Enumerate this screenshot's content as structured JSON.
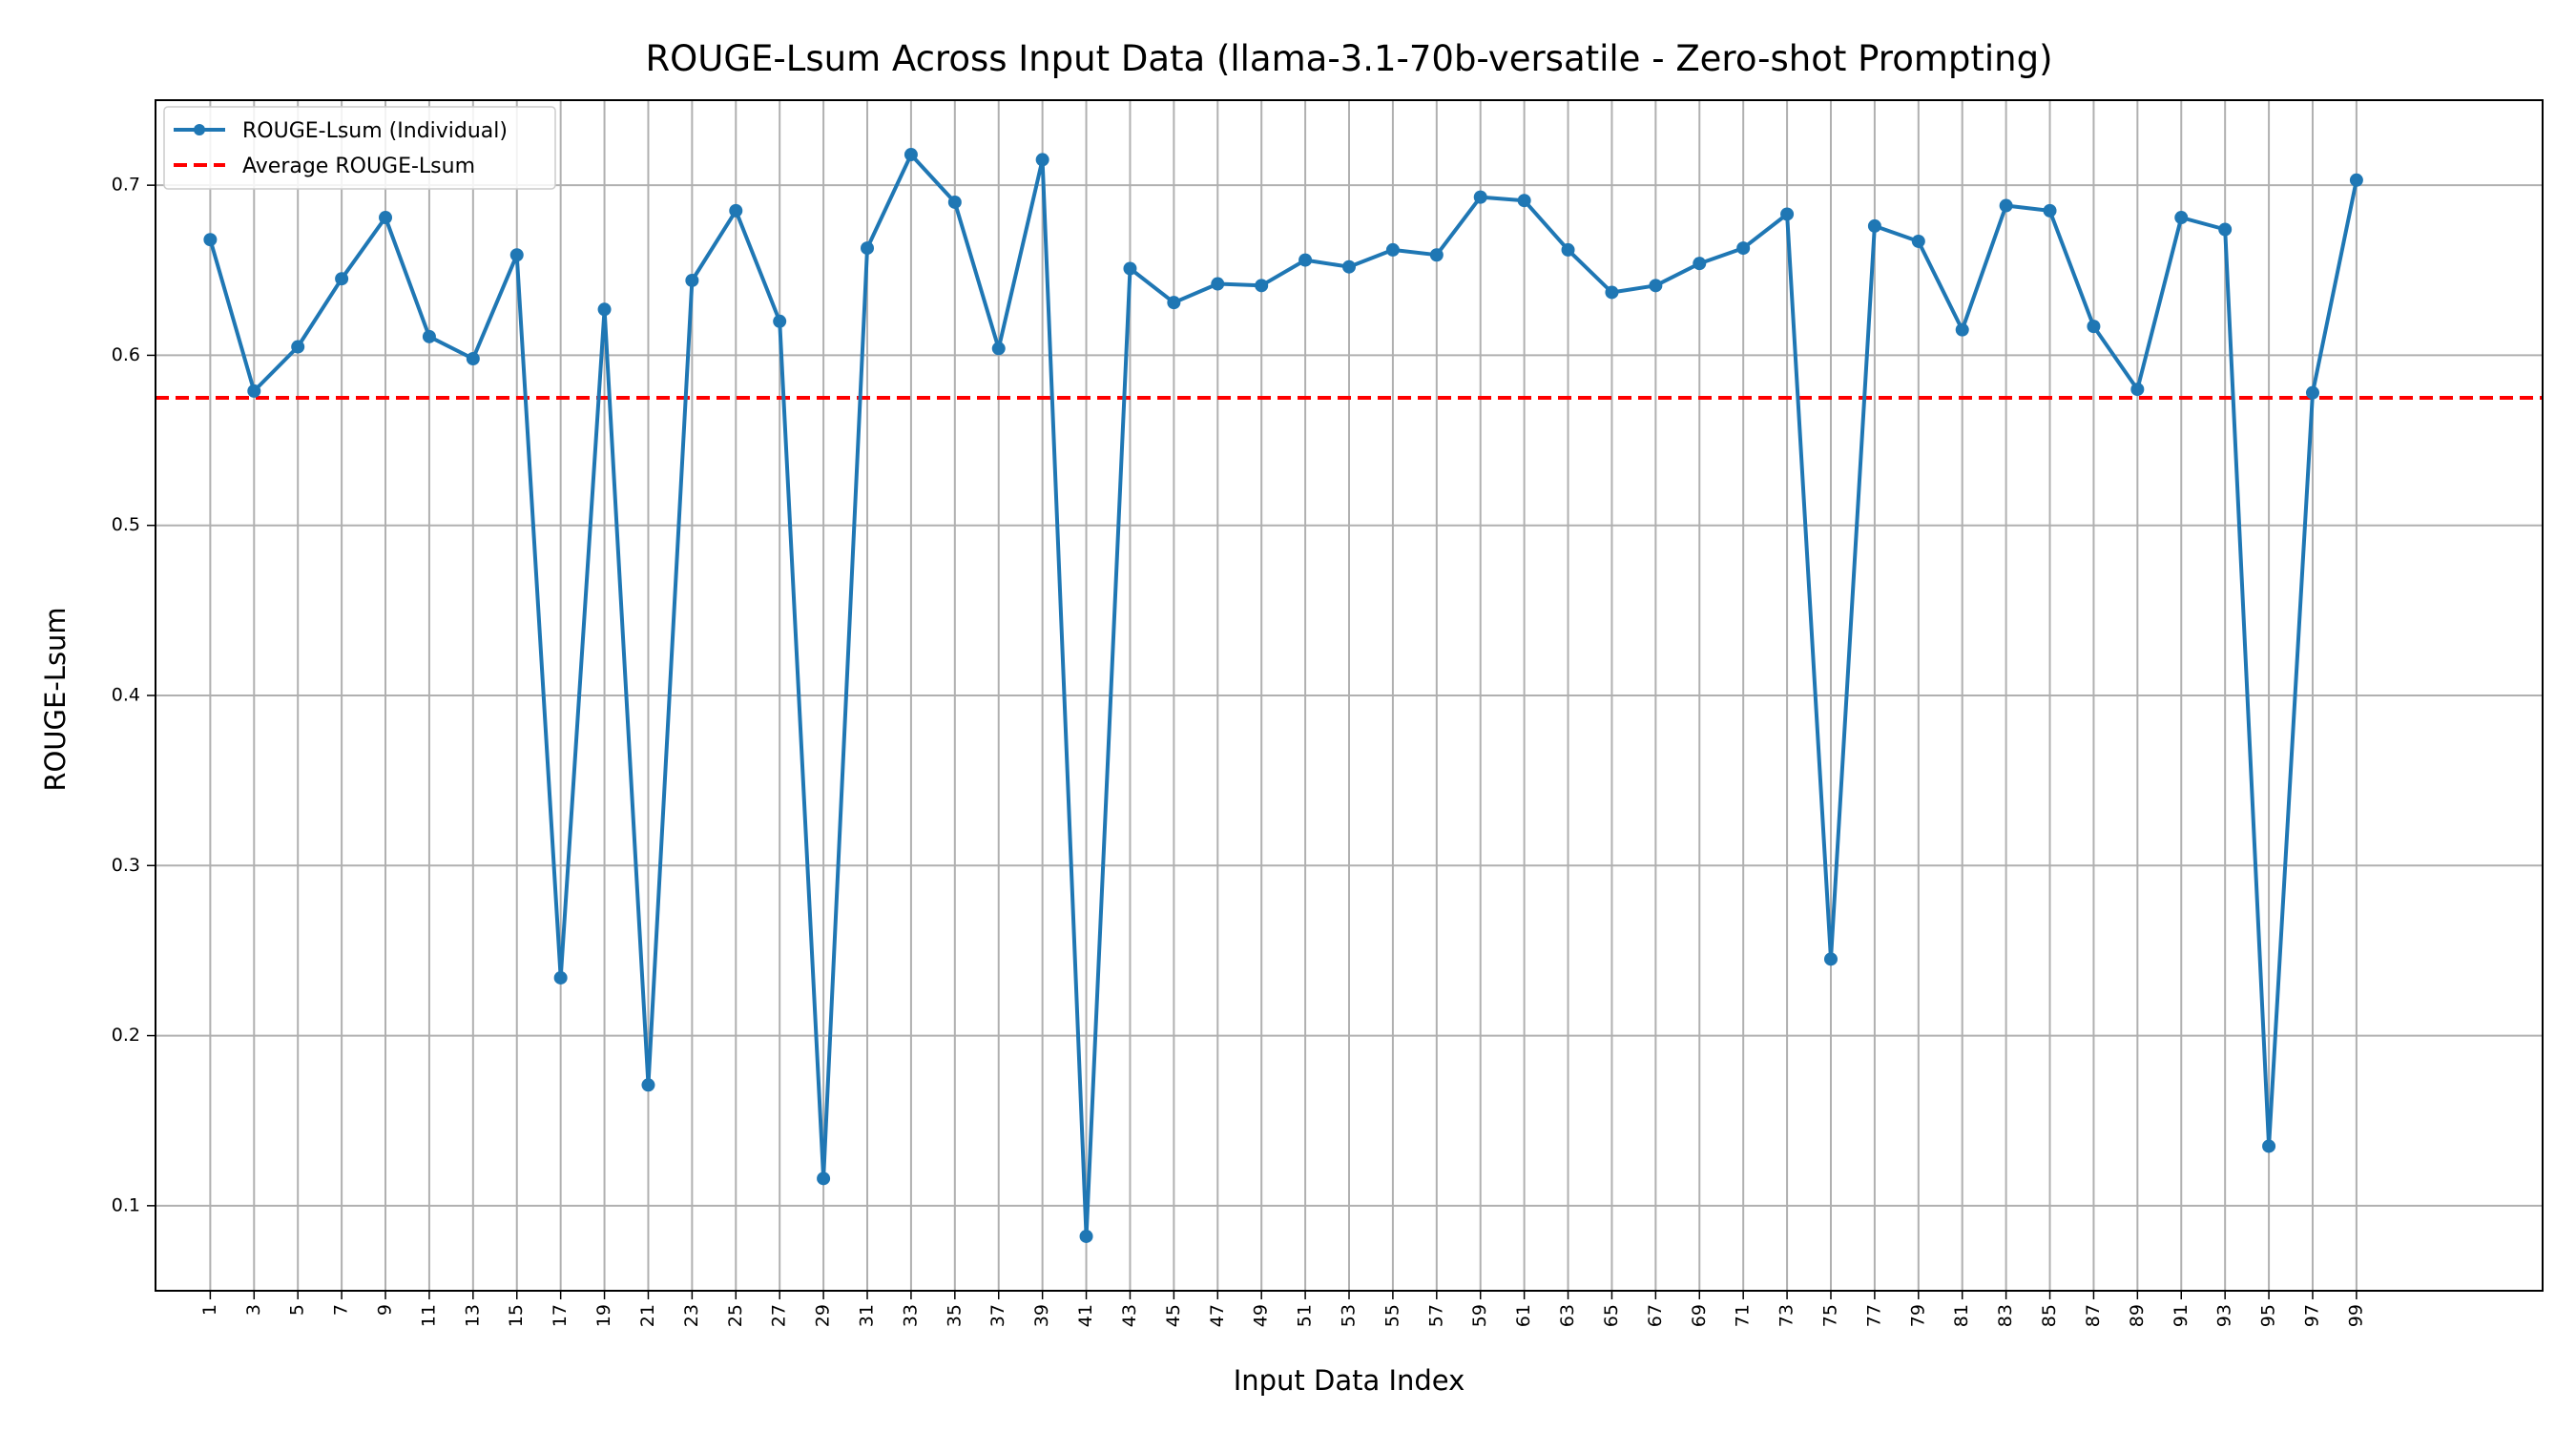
{
  "chart_data": {
    "type": "line",
    "title": "ROUGE-Lsum Across Input Data (llama-3.1-70b-versatile - Zero-shot Prompting)",
    "xlabel": "Input Data Index",
    "ylabel": "ROUGE-Lsum",
    "xlim": [
      -1.5,
      107.5
    ],
    "ylim": [
      0.05,
      0.75
    ],
    "x_ticks": [
      1,
      3,
      5,
      7,
      9,
      11,
      13,
      15,
      17,
      19,
      21,
      23,
      25,
      27,
      29,
      31,
      33,
      35,
      37,
      39,
      41,
      43,
      45,
      47,
      49,
      51,
      53,
      55,
      57,
      59,
      61,
      63,
      65,
      67,
      69,
      71,
      73,
      75,
      77,
      79,
      81,
      83,
      85,
      87,
      89,
      91,
      93,
      95,
      97,
      99
    ],
    "y_ticks": [
      0.1,
      0.2,
      0.3,
      0.4,
      0.5,
      0.6,
      0.7
    ],
    "grid": true,
    "legend_position": "top-left",
    "series": [
      {
        "name": "ROUGE-Lsum (Individual)",
        "color": "#1f77b4",
        "style": "line-with-markers",
        "x": [
          1,
          3,
          5,
          7,
          9,
          11,
          13,
          15,
          17,
          19,
          21,
          23,
          25,
          27,
          29,
          31,
          33,
          35,
          37,
          39,
          41,
          43,
          45,
          47,
          49,
          51,
          53,
          55,
          57,
          59,
          61,
          63,
          65,
          67,
          69,
          71,
          73,
          75,
          77,
          79,
          81,
          83,
          85,
          87,
          89,
          91,
          93,
          95,
          97,
          99
        ],
        "values": [
          0.668,
          0.579,
          0.605,
          0.645,
          0.681,
          0.611,
          0.598,
          0.659,
          0.234,
          0.627,
          0.171,
          0.644,
          0.685,
          0.62,
          0.116,
          0.663,
          0.718,
          0.69,
          0.604,
          0.715,
          0.082,
          0.651,
          0.631,
          0.642,
          0.641,
          0.656,
          0.652,
          0.662,
          0.659,
          0.693,
          0.691,
          0.662,
          0.637,
          0.641,
          0.654,
          0.663,
          0.683,
          0.245,
          0.676,
          0.667,
          0.615,
          0.688,
          0.685,
          0.617,
          0.58,
          0.681,
          0.674,
          0.135,
          0.578,
          0.703
        ]
      },
      {
        "name": "Average ROUGE-Lsum",
        "color": "#ff0000",
        "style": "dashed-horizontal",
        "value": 0.575
      }
    ]
  }
}
